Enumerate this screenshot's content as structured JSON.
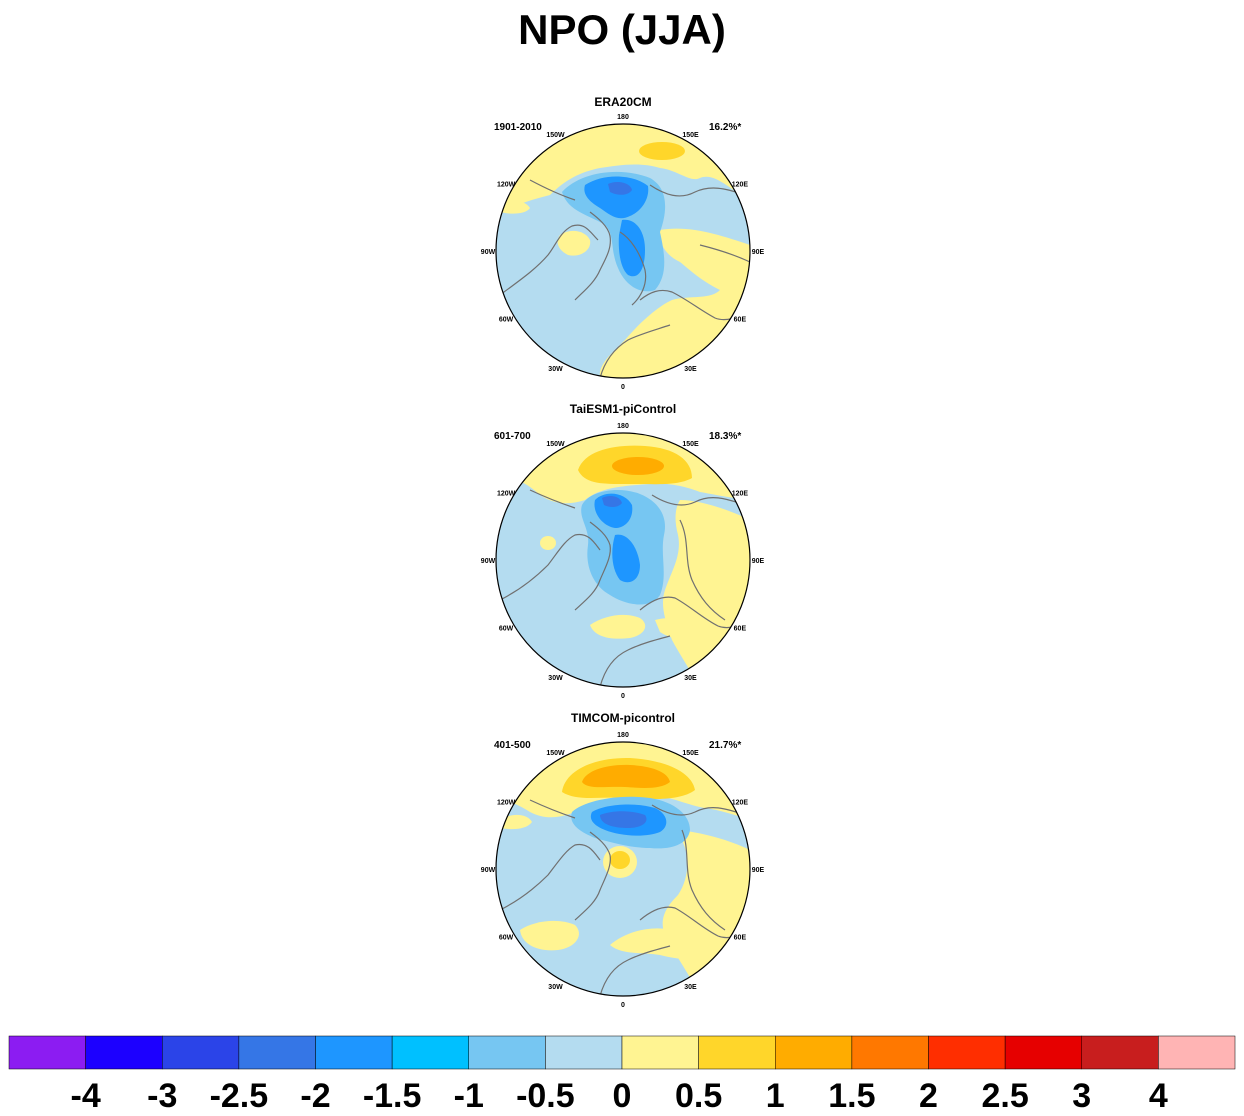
{
  "title": "NPO (JJA)",
  "colors": {
    "ocean_base": "#b4dcf0",
    "land_base": "#fff492",
    "coast": "#707070",
    "outline": "#000000"
  },
  "longitude_labels": [
    "180",
    "150E",
    "120E",
    "90E",
    "60E",
    "30E",
    "0",
    "30W",
    "60W",
    "90W",
    "120W",
    "150W"
  ],
  "panels": [
    {
      "id": "era20cm",
      "title": "ERA20CM",
      "period": "1901-2010",
      "variance": "16.2%*"
    },
    {
      "id": "taiesm1",
      "title": "TaiESM1-piControl",
      "period": "601-700",
      "variance": "18.3%*"
    },
    {
      "id": "timcom",
      "title": "TIMCOM-picontrol",
      "period": "401-500",
      "variance": "21.7%*"
    }
  ],
  "colorbar": {
    "colors": [
      "#8c1cf2",
      "#1c00ff",
      "#2b44e8",
      "#3576e6",
      "#1e96ff",
      "#00c0ff",
      "#76c6f2",
      "#b4dcf0",
      "#fff492",
      "#ffd62a",
      "#ffac00",
      "#ff7800",
      "#ff2e00",
      "#e60000",
      "#c81e1e",
      "#ffb4b4"
    ],
    "labels": [
      "-4",
      "-3",
      "-2.5",
      "-2",
      "-1.5",
      "-1",
      "-0.5",
      "0",
      "0.5",
      "1",
      "1.5",
      "2",
      "2.5",
      "3",
      "4"
    ]
  }
}
